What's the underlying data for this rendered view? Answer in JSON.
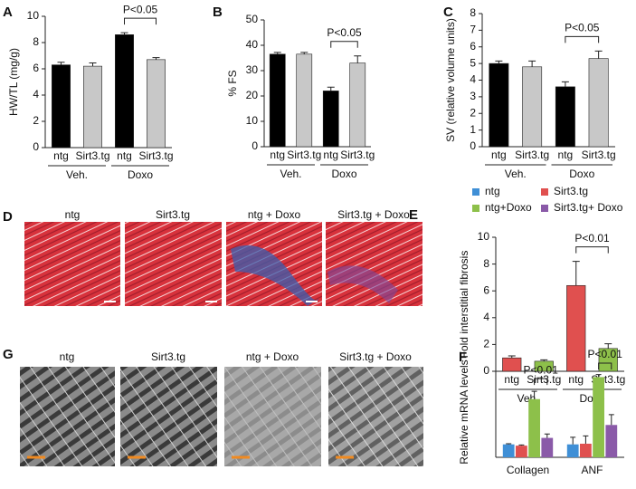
{
  "chart_data": [
    {
      "type": "bar",
      "panel": "A",
      "ylabel": "HW/TL (mg/g)",
      "categories": [
        "ntg",
        "Sirt3.tg",
        "ntg",
        "Sirt3.tg"
      ],
      "groups": [
        "Veh.",
        "Doxo"
      ],
      "values": [
        6.3,
        6.2,
        8.6,
        6.7
      ],
      "errors": [
        0.2,
        0.25,
        0.15,
        0.15
      ],
      "colors": [
        "#000000",
        "#c8c8c8",
        "#000000",
        "#c8c8c8"
      ],
      "ylim": [
        0,
        10
      ],
      "yticks": [
        0,
        2,
        4,
        6,
        8,
        10
      ],
      "annotation": "P<0.05"
    },
    {
      "type": "bar",
      "panel": "B",
      "ylabel": "% FS",
      "categories": [
        "ntg",
        "Sirt3.tg",
        "ntg",
        "Sirt3.tg"
      ],
      "groups": [
        "Veh.",
        "Doxo"
      ],
      "values": [
        36.5,
        36.5,
        22,
        33
      ],
      "errors": [
        0.7,
        0.7,
        1.5,
        2.8
      ],
      "colors": [
        "#000000",
        "#c8c8c8",
        "#000000",
        "#c8c8c8"
      ],
      "ylim": [
        0,
        50
      ],
      "yticks": [
        0,
        10,
        20,
        30,
        40,
        50
      ],
      "annotation": "P<0.05"
    },
    {
      "type": "bar",
      "panel": "C",
      "ylabel": "SV (relative volume units)",
      "categories": [
        "ntg",
        "Sirt3.tg",
        "ntg",
        "Sirt3.tg"
      ],
      "groups": [
        "Veh.",
        "Doxo"
      ],
      "values": [
        5.0,
        4.8,
        3.6,
        5.3
      ],
      "errors": [
        0.15,
        0.35,
        0.3,
        0.45
      ],
      "colors": [
        "#000000",
        "#c8c8c8",
        "#000000",
        "#c8c8c8"
      ],
      "ylim": [
        0,
        8
      ],
      "yticks": [
        0,
        1,
        2,
        3,
        4,
        5,
        6,
        7,
        8
      ],
      "annotation": "P<0.05"
    },
    {
      "type": "bar",
      "panel": "E",
      "ylabel": "Fold interstitial fibrosis",
      "categories": [
        "ntg",
        "Sirt3.tg",
        "ntg",
        "Sirt3.tg"
      ],
      "groups": [
        "Veh.",
        "Doxo"
      ],
      "values": [
        1.0,
        0.75,
        6.4,
        1.7
      ],
      "errors": [
        0.15,
        0.1,
        1.8,
        0.35
      ],
      "colors": [
        "#e0504f",
        "#8dc04a",
        "#e0504f",
        "#8dc04a"
      ],
      "ylim": [
        0,
        10
      ],
      "yticks": [
        0,
        2,
        4,
        6,
        8,
        10
      ],
      "annotation": "P<0.01"
    },
    {
      "type": "grouped_bar",
      "panel": "F",
      "ylabel": "Relative mRNA levels",
      "categories": [
        "Collagen",
        "ANF"
      ],
      "ylim": [
        0,
        7
      ],
      "series": [
        {
          "name": "ntg",
          "color": "#3f8fd6",
          "values": [
            1.0,
            1.0
          ],
          "errors": [
            0.05,
            0.55
          ]
        },
        {
          "name": "Sirt3.tg",
          "color": "#e0504f",
          "values": [
            0.9,
            1.05
          ],
          "errors": [
            0.05,
            0.6
          ]
        },
        {
          "name": "ntg+Doxo",
          "color": "#8dc04a",
          "values": [
            4.5,
            6.2
          ],
          "errors": [
            0.6,
            0.2
          ]
        },
        {
          "name": "Sirt3.tg+ Doxo",
          "color": "#8a5aa8",
          "values": [
            1.5,
            2.5
          ],
          "errors": [
            0.3,
            0.8
          ]
        }
      ],
      "annotations": [
        "P<0.01",
        "P<0.01"
      ]
    }
  ],
  "micrographs": [
    {
      "panel": "D",
      "captions": [
        "ntg",
        "Sirt3.tg",
        "ntg + Doxo",
        "Sirt3.tg + Doxo"
      ]
    },
    {
      "panel": "G",
      "captions": [
        "ntg",
        "Sirt3.tg",
        "ntg + Doxo",
        "Sirt3.tg + Doxo"
      ]
    }
  ]
}
